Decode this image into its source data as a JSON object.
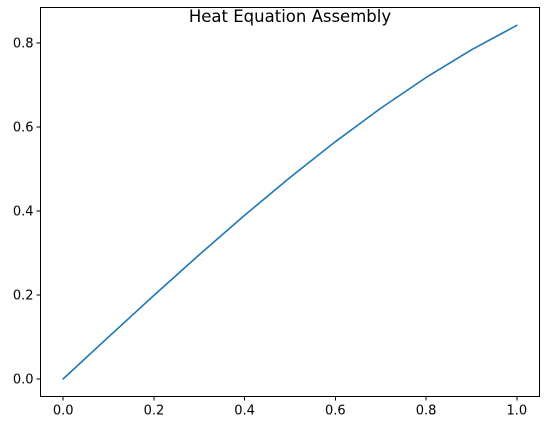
{
  "chart_data": {
    "type": "line",
    "title": "Heat Equation Assembly",
    "xlabel": "",
    "ylabel": "",
    "xlim": [
      -0.05,
      1.05
    ],
    "ylim": [
      -0.042,
      0.884
    ],
    "x_ticks": [
      0.0,
      0.2,
      0.4,
      0.6,
      0.8,
      1.0
    ],
    "x_tick_labels": [
      "0.0",
      "0.2",
      "0.4",
      "0.6",
      "0.8",
      "1.0"
    ],
    "y_ticks": [
      0.0,
      0.2,
      0.4,
      0.6,
      0.8
    ],
    "y_tick_labels": [
      "0.0",
      "0.2",
      "0.4",
      "0.6",
      "0.8"
    ],
    "grid": false,
    "legend": "none",
    "series": [
      {
        "color": "#1f77b4",
        "x": [
          0.0,
          0.1,
          0.2,
          0.3,
          0.4,
          0.5,
          0.6,
          0.7,
          0.8,
          0.9,
          1.0
        ],
        "y": [
          0.0,
          0.0998,
          0.1987,
          0.2955,
          0.3894,
          0.4794,
          0.5646,
          0.6442,
          0.7174,
          0.7833,
          0.8415
        ]
      }
    ]
  }
}
